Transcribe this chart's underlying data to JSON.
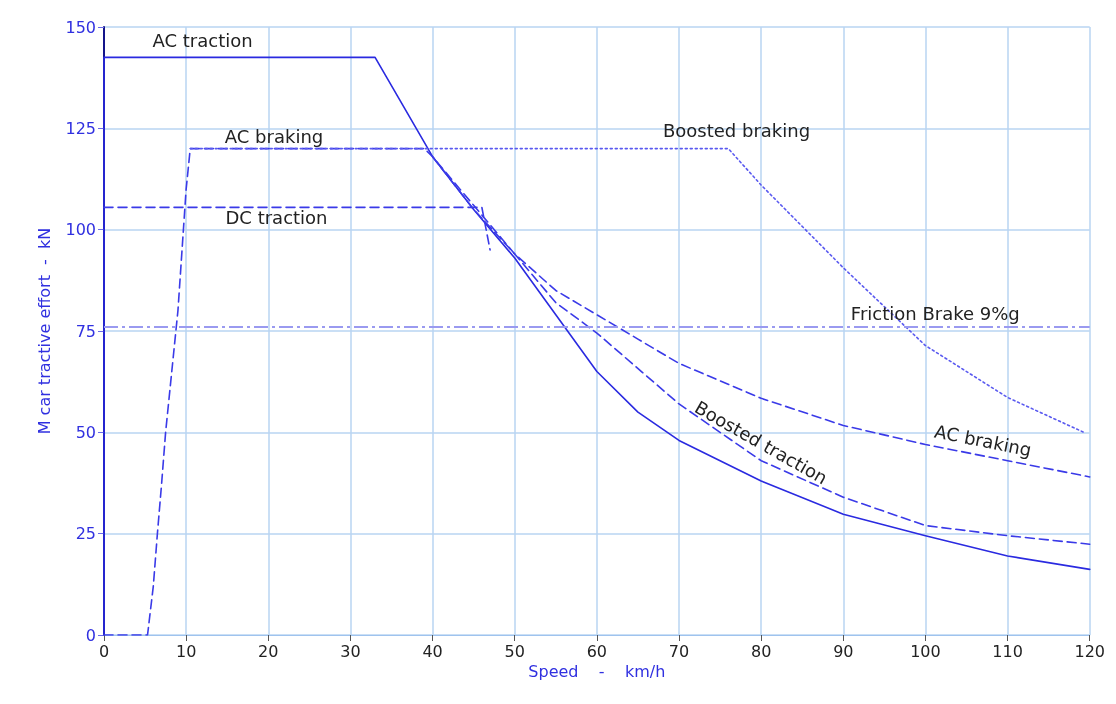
{
  "chart_data": {
    "type": "line",
    "xlabel": "Speed    -    km/h",
    "ylabel": "M car tractive effort  -  kN",
    "xlim": [
      0,
      120
    ],
    "xticks": [
      0,
      10,
      20,
      30,
      40,
      50,
      60,
      70,
      80,
      90,
      100,
      110,
      120
    ],
    "ylim": [
      0,
      150
    ],
    "yticks": [
      0,
      25,
      50,
      75,
      100,
      125,
      150
    ],
    "grid": true,
    "marker": "none",
    "series": [
      {
        "name": "AC traction",
        "color": "#2a2ae0",
        "line_style": "solid",
        "x": [
          0,
          0,
          33,
          36,
          40,
          45,
          50,
          55,
          60,
          65,
          70,
          80,
          90,
          100,
          110,
          120
        ],
        "values": [
          0,
          142.5,
          142.5,
          132,
          118,
          105,
          93,
          79,
          65,
          55,
          48,
          38,
          29.8,
          24.5,
          19.5,
          16.2
        ]
      },
      {
        "name": "AC braking",
        "color": "#3a3ae8",
        "line_style": "dashed",
        "x": [
          0,
          5.3,
          6,
          6.5,
          7,
          7.5,
          8.5,
          9,
          10,
          10.5,
          39,
          40,
          45,
          50,
          55,
          60,
          65,
          70,
          80,
          90,
          100,
          110,
          120
        ],
        "values": [
          0,
          0,
          12,
          25,
          37,
          50,
          70,
          80,
          110,
          120,
          120,
          118,
          106,
          94,
          85,
          79,
          73,
          67,
          58.4,
          51.7,
          47,
          43,
          39
        ]
      },
      {
        "name": "DC traction",
        "color": "#3a3ae8",
        "line_style": "dashed",
        "x": [
          0,
          46,
          47
        ],
        "values": [
          105.5,
          105.5,
          95
        ]
      },
      {
        "name": "Boosted braking",
        "color": "#5a5af0",
        "line_style": "dotted",
        "x": [
          10.5,
          76,
          80,
          90,
          100,
          110,
          119.5
        ],
        "values": [
          120,
          120,
          111,
          90.6,
          71.4,
          58.6,
          49.8
        ]
      },
      {
        "name": "Boosted traction",
        "color": "#3a3ae8",
        "line_style": "dashed",
        "x": [
          40,
          45,
          50,
          55,
          60,
          70,
          80,
          90,
          100,
          110,
          120
        ],
        "values": [
          118,
          105,
          94,
          82,
          74.5,
          57,
          43,
          34,
          27,
          24.5,
          22.4
        ]
      }
    ],
    "ref_lines": [
      {
        "axis": "y",
        "value": 76,
        "label": "Friction Brake 9%g",
        "color": "#9a9af0",
        "line_style": "dashed"
      }
    ]
  }
}
